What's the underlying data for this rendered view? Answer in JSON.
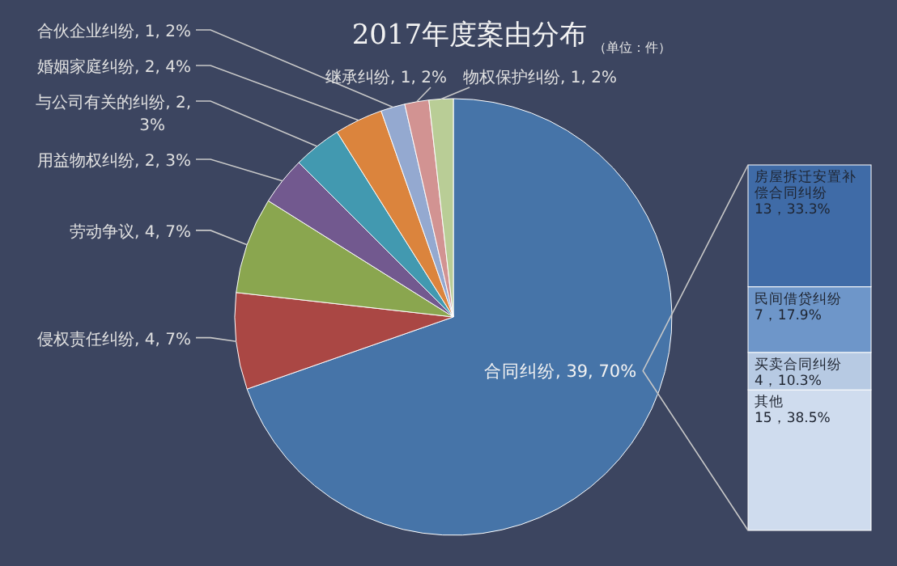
{
  "chart_data": [
    {
      "type": "pie",
      "title": "2017年度案由分布",
      "subtitle": "（单位：件）",
      "categories": [
        "合同纠纷",
        "侵权责任纠纷",
        "劳动争议",
        "用益物权纠纷",
        "与公司有关的纠纷",
        "婚姻家庭纠纷",
        "合伙企业纠纷",
        "继承纠纷",
        "物权保护纠纷"
      ],
      "values": [
        39,
        4,
        4,
        2,
        2,
        2,
        1,
        1,
        1
      ],
      "colors": [
        "#4674a8",
        "#aa4744",
        "#8aa64f",
        "#72598f",
        "#4299b0",
        "#db843d",
        "#94a9d0",
        "#d29392",
        "#b9cd96"
      ],
      "value_labels": [
        "39, 70%",
        "4, 7%",
        "4, 7%",
        "2, 3%",
        "2, 3%",
        "2, 4%",
        "1, 2%",
        "1, 2%",
        "1, 2%"
      ]
    },
    {
      "type": "bar",
      "stacked": true,
      "categories": [
        null
      ],
      "series": [
        {
          "name": "其他",
          "color": "#cfdcee",
          "values": [
            15
          ],
          "value_labels": [
            "15，38.5%"
          ]
        },
        {
          "name": "买卖合同纠纷",
          "color": "#b7cae3",
          "values": [
            4
          ],
          "value_labels": [
            "4，10.3%"
          ]
        },
        {
          "name": "民间借贷纠纷",
          "color": "#6e96c9",
          "values": [
            7
          ],
          "value_labels": [
            "7，17.9%"
          ]
        },
        {
          "name": "房屋拆迁安置补偿合同纠纷",
          "color": "#3f6ba7",
          "values": [
            13
          ],
          "value_labels": [
            "13，33.3%"
          ]
        }
      ]
    }
  ]
}
